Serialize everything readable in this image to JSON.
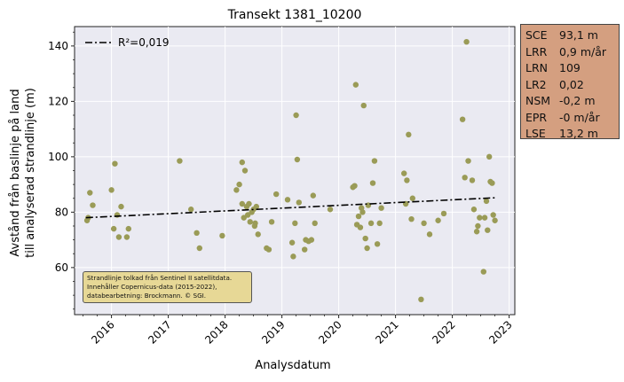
{
  "chart_data": {
    "type": "scatter",
    "title": "Transekt 1381_10200",
    "xlabel": "Analysdatum",
    "ylabel_lines": [
      "Avstånd från baslinje på land",
      "till analyserad strandlinje (m)"
    ],
    "xlim": [
      2015.35,
      2023.1
    ],
    "ylim": [
      43,
      147
    ],
    "x_ticks": [
      2016,
      2017,
      2018,
      2019,
      2020,
      2021,
      2022,
      2023
    ],
    "x_tick_labels": [
      "2016",
      "2017",
      "2018",
      "2019",
      "2020",
      "2021",
      "2022",
      "2023"
    ],
    "y_ticks": [
      60,
      80,
      100,
      120,
      140
    ],
    "y_tick_labels": [
      "60",
      "80",
      "100",
      "120",
      "140"
    ],
    "grid": true,
    "legend": {
      "placement": "top-left",
      "entries": [
        "R²=0,019"
      ]
    },
    "trend_line": {
      "x": [
        2015.55,
        2022.75
      ],
      "y": [
        78.0,
        85.2
      ]
    },
    "point_color": "#9a9b57",
    "trend_color": "#000000",
    "points": [
      [
        2015.57,
        77
      ],
      [
        2015.59,
        78
      ],
      [
        2015.62,
        87
      ],
      [
        2015.67,
        82.5
      ],
      [
        2016.0,
        88
      ],
      [
        2016.04,
        74
      ],
      [
        2016.06,
        97.5
      ],
      [
        2016.1,
        79
      ],
      [
        2016.13,
        71
      ],
      [
        2016.17,
        82
      ],
      [
        2016.27,
        71
      ],
      [
        2016.3,
        74
      ],
      [
        2017.2,
        98.5
      ],
      [
        2017.4,
        81
      ],
      [
        2017.5,
        72.5
      ],
      [
        2017.55,
        67
      ],
      [
        2017.95,
        71.5
      ],
      [
        2018.2,
        88
      ],
      [
        2018.25,
        90
      ],
      [
        2018.3,
        98
      ],
      [
        2018.33,
        78
      ],
      [
        2018.3,
        83
      ],
      [
        2018.38,
        82
      ],
      [
        2018.35,
        95
      ],
      [
        2018.4,
        79
      ],
      [
        2018.42,
        83
      ],
      [
        2018.44,
        76.5
      ],
      [
        2018.47,
        80
      ],
      [
        2018.5,
        81
      ],
      [
        2018.53,
        76
      ],
      [
        2018.52,
        75
      ],
      [
        2018.55,
        82
      ],
      [
        2018.58,
        72
      ],
      [
        2018.73,
        67
      ],
      [
        2018.77,
        66.5
      ],
      [
        2018.82,
        76.5
      ],
      [
        2018.9,
        86.5
      ],
      [
        2019.1,
        84.5
      ],
      [
        2019.18,
        69
      ],
      [
        2019.2,
        64
      ],
      [
        2019.23,
        76
      ],
      [
        2019.25,
        115
      ],
      [
        2019.27,
        99
      ],
      [
        2019.3,
        83.5
      ],
      [
        2019.4,
        66.5
      ],
      [
        2019.42,
        70
      ],
      [
        2019.47,
        69.5
      ],
      [
        2019.52,
        70
      ],
      [
        2019.55,
        86
      ],
      [
        2019.58,
        76
      ],
      [
        2019.85,
        81
      ],
      [
        2020.25,
        89
      ],
      [
        2020.28,
        89.5
      ],
      [
        2020.3,
        126
      ],
      [
        2020.32,
        75.5
      ],
      [
        2020.35,
        78.5
      ],
      [
        2020.38,
        74.5
      ],
      [
        2020.4,
        81.5
      ],
      [
        2020.42,
        80
      ],
      [
        2020.44,
        118.5
      ],
      [
        2020.47,
        70.5
      ],
      [
        2020.5,
        67
      ],
      [
        2020.52,
        82.5
      ],
      [
        2020.57,
        76
      ],
      [
        2020.6,
        90.5
      ],
      [
        2020.63,
        98.5
      ],
      [
        2020.68,
        68.5
      ],
      [
        2020.72,
        76
      ],
      [
        2020.75,
        81.5
      ],
      [
        2021.15,
        94
      ],
      [
        2021.18,
        83
      ],
      [
        2021.2,
        91.5
      ],
      [
        2021.23,
        108
      ],
      [
        2021.28,
        77.5
      ],
      [
        2021.3,
        85
      ],
      [
        2021.45,
        48.5
      ],
      [
        2021.5,
        76
      ],
      [
        2021.6,
        72
      ],
      [
        2021.75,
        77
      ],
      [
        2021.85,
        79.5
      ],
      [
        2022.18,
        113.5
      ],
      [
        2022.22,
        92.5
      ],
      [
        2022.25,
        141.5
      ],
      [
        2022.28,
        98.5
      ],
      [
        2022.35,
        91.5
      ],
      [
        2022.38,
        81
      ],
      [
        2022.43,
        73
      ],
      [
        2022.45,
        75
      ],
      [
        2022.48,
        78
      ],
      [
        2022.55,
        58.5
      ],
      [
        2022.57,
        78
      ],
      [
        2022.6,
        84
      ],
      [
        2022.62,
        73.5
      ],
      [
        2022.65,
        100
      ],
      [
        2022.67,
        91
      ],
      [
        2022.7,
        90.5
      ],
      [
        2022.72,
        79
      ],
      [
        2022.75,
        77
      ]
    ]
  },
  "stats_box": {
    "rows": [
      {
        "label": "SCE",
        "value": "93,1 m"
      },
      {
        "label": "LRR",
        "value": "0,9 m/år"
      },
      {
        "label": "LRN",
        "value": "109"
      },
      {
        "label": "LR2",
        "value": "0,02"
      },
      {
        "label": "NSM",
        "value": "-0,2 m"
      },
      {
        "label": "EPR",
        "value": "-0 m/år"
      },
      {
        "label": "LSE",
        "value": "13,2 m"
      }
    ],
    "background": "#d49f80"
  },
  "note_box": {
    "lines": [
      "Strandlinje tolkad från Sentinel II satellitdata.",
      "Innehåller Copernicus-data (2015-2022),",
      "databearbetning: Brockmann. © SGI."
    ],
    "background": "#e7d896"
  }
}
